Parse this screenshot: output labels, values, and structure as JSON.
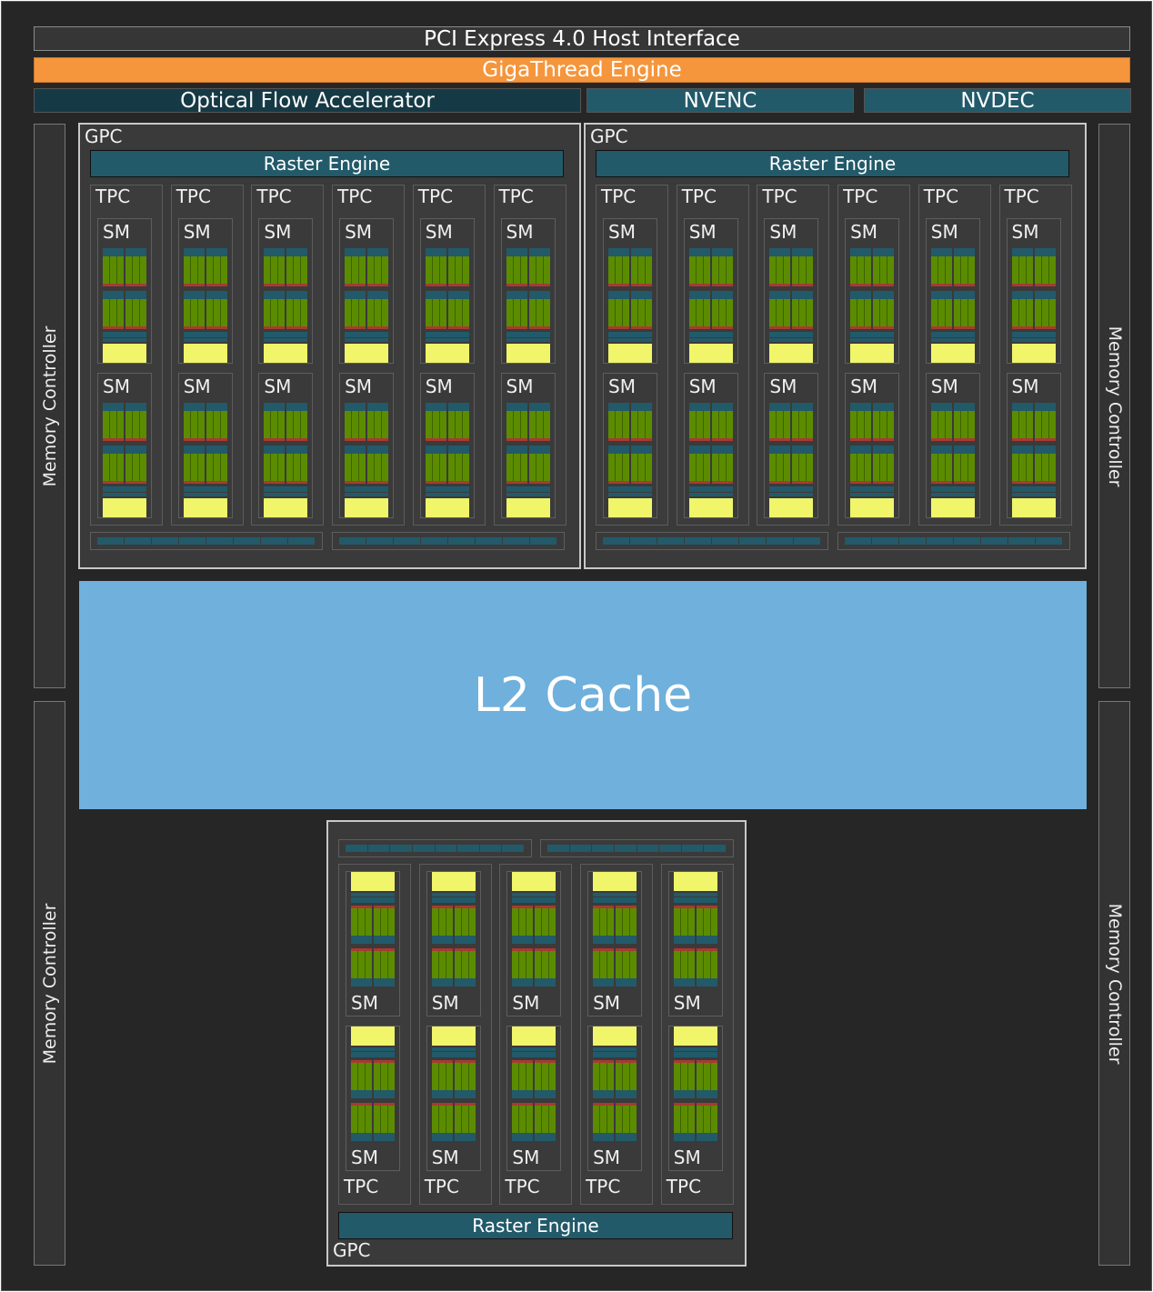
{
  "header": {
    "pcie": "PCI Express 4.0 Host Interface",
    "gigathread": "GigaThread Engine",
    "optical_flow": "Optical Flow Accelerator",
    "nvenc": "NVENC",
    "nvdec": "NVDEC"
  },
  "memory_controller": "Memory Controller",
  "l2_cache": "L2 Cache",
  "gpcs": [
    {
      "label": "GPC",
      "raster": "Raster Engine",
      "tpc_count": 6,
      "tpc_label": "TPC",
      "sm_label": "SM",
      "sms_per_tpc": 2
    },
    {
      "label": "GPC",
      "raster": "Raster Engine",
      "tpc_count": 6,
      "tpc_label": "TPC",
      "sm_label": "SM",
      "sms_per_tpc": 2
    },
    {
      "label": "GPC",
      "raster": "Raster Engine",
      "tpc_count": 5,
      "tpc_label": "TPC",
      "sm_label": "SM",
      "sms_per_tpc": 2
    }
  ],
  "colors": {
    "gigathread": "#f5953c",
    "l2": "#6fb0dc",
    "teal": "#225a6a",
    "cuda_core": "#5b8c00",
    "tensor": "#a83a32",
    "l1": "#f0f56a"
  }
}
